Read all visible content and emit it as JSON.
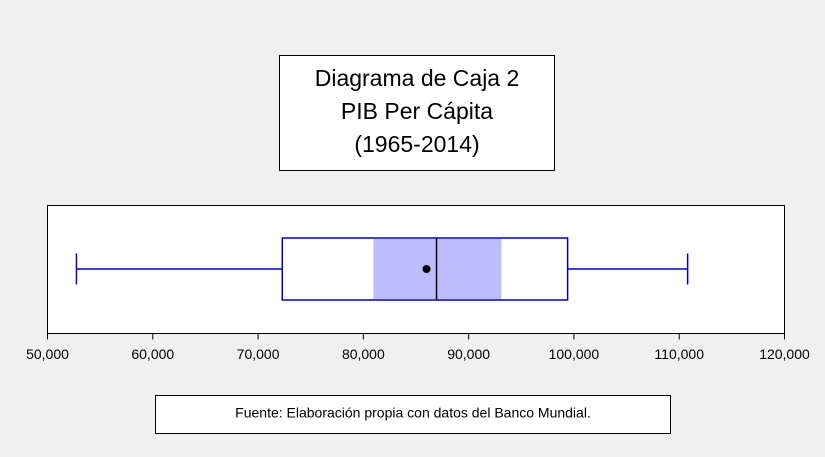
{
  "chart_data": {
    "type": "box",
    "title": [
      "Diagrama de Caja 2",
      "PIB Per Cápita",
      "(1965-2014)"
    ],
    "note": "Fuente: Elaboración propia con datos del Banco Mundial.",
    "color": "#0000cc",
    "ci_color": "#bcbcff",
    "xlim": [
      50000,
      120000
    ],
    "xticks": [
      {
        "value": 50000,
        "label": "50,000"
      },
      {
        "value": 60000,
        "label": "60,000"
      },
      {
        "value": 70000,
        "label": "70,000"
      },
      {
        "value": 80000,
        "label": "80,000"
      },
      {
        "value": 90000,
        "label": "90,000"
      },
      {
        "value": 100000,
        "label": "100,000"
      },
      {
        "value": 110000,
        "label": "110,000"
      },
      {
        "value": 120000,
        "label": "120,000"
      }
    ],
    "box": {
      "whisker_low": 52750,
      "q1": 72300,
      "median_ci_low": 80950,
      "median": 86950,
      "median_ci_high": 93100,
      "q3": 99400,
      "whisker_high": 110800,
      "mean": 86000
    }
  }
}
